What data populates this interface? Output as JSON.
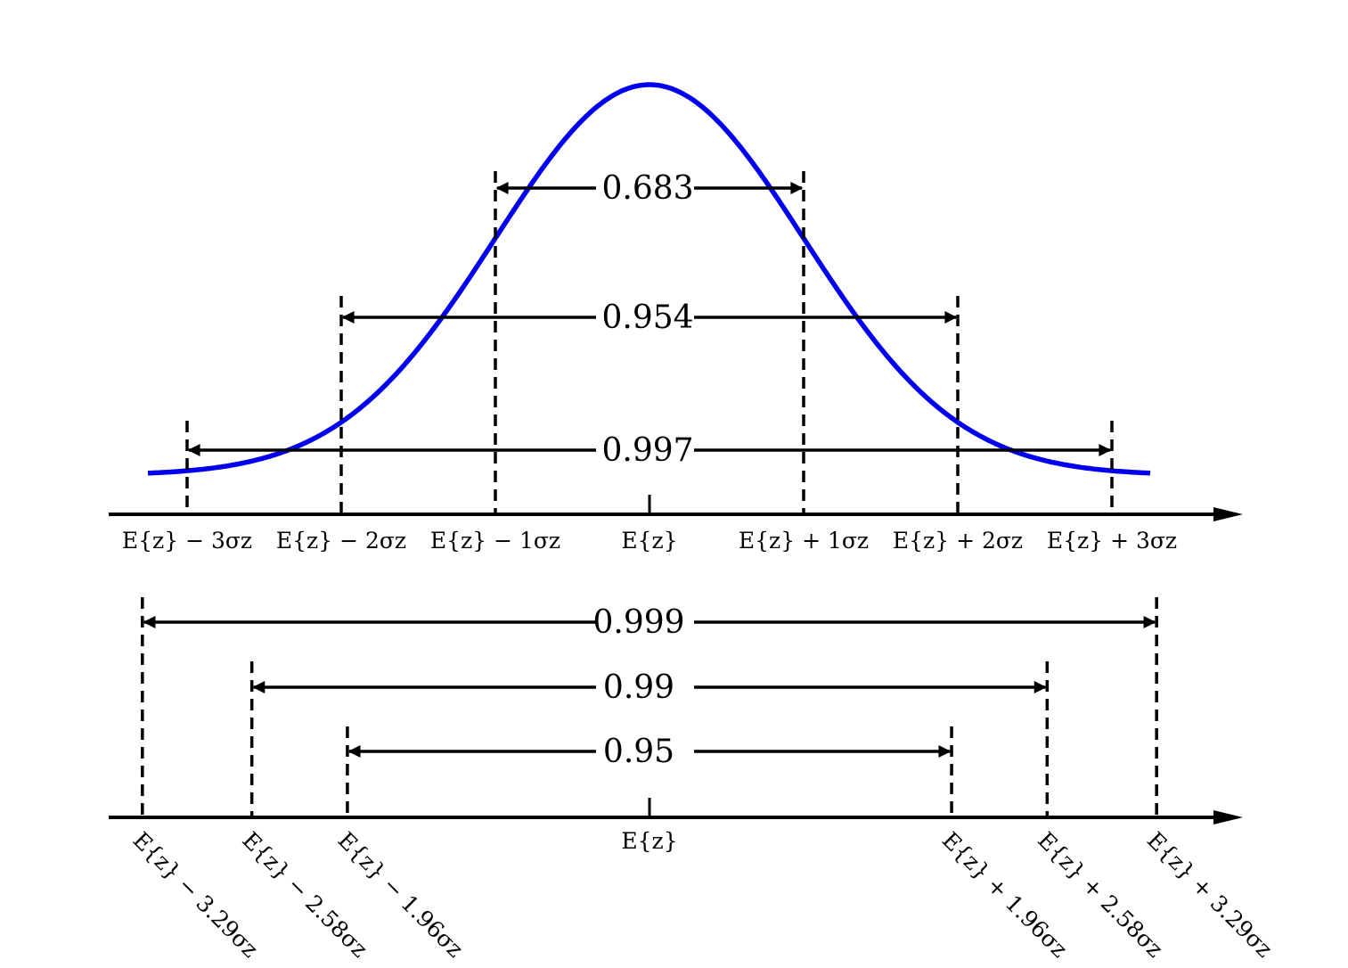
{
  "top_panel": {
    "intervals": [
      {
        "k": 1,
        "prob": "0.683"
      },
      {
        "k": 2,
        "prob": "0.954"
      },
      {
        "k": 3,
        "prob": "0.997"
      }
    ],
    "labels": [
      {
        "k": -3,
        "text": "E{z} − 3σz"
      },
      {
        "k": -2,
        "text": "E{z} − 2σz"
      },
      {
        "k": -1,
        "text": "E{z} − 1σz"
      },
      {
        "k": 0,
        "text": "E{z}"
      },
      {
        "k": 1,
        "text": "E{z} + 1σz"
      },
      {
        "k": 2,
        "text": "E{z} + 2σz"
      },
      {
        "k": 3,
        "text": "E{z} + 3σz"
      }
    ]
  },
  "bottom_panel": {
    "intervals": [
      {
        "k": 3.29,
        "prob": "0.999"
      },
      {
        "k": 2.58,
        "prob": "0.99"
      },
      {
        "k": 1.96,
        "prob": "0.95"
      }
    ],
    "center_label": "E{z}",
    "labels": [
      {
        "k": -3.29,
        "text": "E{z} − 3.29σz"
      },
      {
        "k": -2.58,
        "text": "E{z} − 2.58σz"
      },
      {
        "k": -1.96,
        "text": "E{z} − 1.96σz"
      },
      {
        "k": 1.96,
        "text": "E{z} + 1.96σz"
      },
      {
        "k": 2.58,
        "text": "E{z} + 2.58σz"
      },
      {
        "k": 3.29,
        "text": "E{z} + 3.29σz"
      }
    ]
  },
  "colors": {
    "curve": "#0000ee",
    "lines": "#000000"
  }
}
